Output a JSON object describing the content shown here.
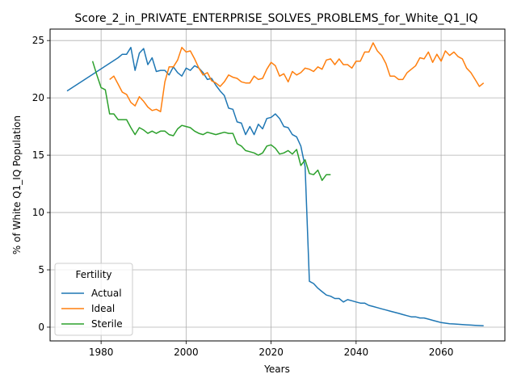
{
  "chart_data": {
    "type": "line",
    "title": "Score_2_in_PRIVATE_ENTERPRISE_SOLVES_PROBLEMS_for_White_Q1_IQ",
    "xlabel": "Years",
    "ylabel": "% of White Q1_IQ Population",
    "xlim": [
      1968,
      2075
    ],
    "ylim": [
      -1.2,
      26
    ],
    "xticks": [
      1980,
      2000,
      2020,
      2040,
      2060
    ],
    "yticks": [
      0,
      5,
      10,
      15,
      20,
      25
    ],
    "grid": true,
    "legend": {
      "title": "Fertility",
      "placement": "lower-left"
    },
    "series": [
      {
        "name": "Actual",
        "color": "#1f77b4",
        "x": [
          1972,
          1984,
          1985,
          1986,
          1987,
          1988,
          1989,
          1990,
          1991,
          1992,
          1993,
          1994,
          1995,
          1996,
          1997,
          1998,
          1999,
          2000,
          2001,
          2002,
          2003,
          2004,
          2005,
          2006,
          2007,
          2008,
          2009,
          2010,
          2011,
          2012,
          2013,
          2014,
          2015,
          2016,
          2017,
          2018,
          2019,
          2020,
          2021,
          2022,
          2023,
          2024,
          2025,
          2026,
          2027,
          2028,
          2029,
          2030,
          2031,
          2032,
          2033,
          2034,
          2035,
          2036,
          2037,
          2038,
          2039,
          2040,
          2041,
          2042,
          2043,
          2044,
          2045,
          2046,
          2047,
          2048,
          2049,
          2050,
          2051,
          2052,
          2053,
          2054,
          2055,
          2056,
          2057,
          2058,
          2059,
          2060,
          2061,
          2062,
          2063,
          2064,
          2065,
          2066,
          2067,
          2068,
          2069,
          2070
        ],
        "values": [
          20.6,
          23.5,
          23.8,
          23.8,
          24.4,
          22.4,
          23.9,
          24.3,
          22.9,
          23.5,
          22.3,
          22.4,
          22.4,
          22.0,
          22.7,
          22.2,
          21.9,
          22.6,
          22.4,
          22.8,
          22.6,
          22.2,
          21.6,
          21.7,
          21.1,
          20.6,
          20.2,
          19.1,
          19.0,
          17.9,
          17.8,
          16.8,
          17.5,
          16.8,
          17.7,
          17.3,
          18.2,
          18.3,
          18.6,
          18.2,
          17.5,
          17.4,
          16.8,
          16.6,
          15.8,
          14.0,
          4.0,
          3.8,
          3.4,
          3.1,
          2.8,
          2.7,
          2.5,
          2.5,
          2.2,
          2.4,
          2.3,
          2.2,
          2.1,
          2.1,
          1.9,
          1.8,
          1.7,
          1.6,
          1.5,
          1.4,
          1.3,
          1.2,
          1.1,
          1.0,
          0.9,
          0.9,
          0.8,
          0.8,
          0.7,
          0.6,
          0.5,
          0.4,
          0.35,
          0.3,
          0.28,
          0.25,
          0.22,
          0.2,
          0.18,
          0.16,
          0.14,
          0.12
        ]
      },
      {
        "name": "Ideal",
        "color": "#ff7f0e",
        "x": [
          1982,
          1983,
          1984,
          1985,
          1986,
          1987,
          1988,
          1989,
          1990,
          1991,
          1992,
          1993,
          1994,
          1995,
          1996,
          1997,
          1998,
          1999,
          2000,
          2001,
          2002,
          2003,
          2004,
          2005,
          2006,
          2007,
          2008,
          2009,
          2010,
          2011,
          2012,
          2013,
          2014,
          2015,
          2016,
          2017,
          2018,
          2019,
          2020,
          2021,
          2022,
          2023,
          2024,
          2025,
          2026,
          2027,
          2028,
          2029,
          2030,
          2031,
          2032,
          2033,
          2034,
          2035,
          2036,
          2037,
          2038,
          2039,
          2040,
          2041,
          2042,
          2043,
          2044,
          2045,
          2046,
          2047,
          2048,
          2049,
          2050,
          2051,
          2052,
          2053,
          2054,
          2055,
          2056,
          2057,
          2058,
          2059,
          2060,
          2061,
          2062,
          2063,
          2064,
          2065,
          2066,
          2067,
          2068,
          2069,
          2070
        ],
        "values": [
          21.6,
          21.9,
          21.2,
          20.5,
          20.3,
          19.6,
          19.3,
          20.1,
          19.7,
          19.2,
          18.9,
          19.0,
          18.8,
          21.4,
          22.7,
          22.7,
          23.3,
          24.4,
          24.0,
          24.1,
          23.4,
          22.6,
          22.0,
          22.2,
          21.5,
          21.3,
          21.0,
          21.4,
          22.0,
          21.8,
          21.7,
          21.4,
          21.3,
          21.3,
          21.9,
          21.6,
          21.7,
          22.5,
          23.1,
          22.8,
          21.9,
          22.1,
          21.4,
          22.3,
          22.0,
          22.2,
          22.6,
          22.5,
          22.3,
          22.7,
          22.5,
          23.3,
          23.4,
          22.9,
          23.4,
          22.9,
          22.9,
          22.6,
          23.2,
          23.2,
          24.0,
          24.0,
          24.8,
          24.1,
          23.7,
          23.0,
          21.9,
          21.9,
          21.6,
          21.6,
          22.2,
          22.5,
          22.8,
          23.5,
          23.4,
          24.0,
          23.1,
          23.8,
          23.2,
          24.1,
          23.7,
          24.0,
          23.6,
          23.4,
          22.6,
          22.2,
          21.6,
          21.0,
          21.3
        ]
      },
      {
        "name": "Sterile",
        "color": "#2ca02c",
        "x": [
          1978,
          1979,
          1980,
          1981,
          1982,
          1983,
          1984,
          1985,
          1986,
          1987,
          1988,
          1989,
          1990,
          1991,
          1992,
          1993,
          1994,
          1995,
          1996,
          1997,
          1998,
          1999,
          2000,
          2001,
          2002,
          2003,
          2004,
          2005,
          2006,
          2007,
          2008,
          2009,
          2010,
          2011,
          2012,
          2013,
          2014,
          2015,
          2016,
          2017,
          2018,
          2019,
          2020,
          2021,
          2022,
          2023,
          2024,
          2025,
          2026,
          2027,
          2028,
          2029,
          2030,
          2031,
          2032,
          2033,
          2034
        ],
        "values": [
          23.2,
          22.0,
          20.9,
          20.7,
          18.6,
          18.6,
          18.1,
          18.1,
          18.1,
          17.4,
          16.8,
          17.4,
          17.2,
          16.9,
          17.1,
          16.9,
          17.1,
          17.1,
          16.8,
          16.7,
          17.3,
          17.6,
          17.5,
          17.4,
          17.1,
          16.9,
          16.8,
          17.0,
          16.9,
          16.8,
          16.9,
          17.0,
          16.9,
          16.9,
          16.0,
          15.8,
          15.4,
          15.3,
          15.2,
          15.0,
          15.2,
          15.8,
          15.9,
          15.6,
          15.1,
          15.2,
          15.4,
          15.1,
          15.5,
          14.1,
          14.6,
          13.4,
          13.3,
          13.7,
          12.8,
          13.3,
          13.3
        ]
      }
    ]
  }
}
